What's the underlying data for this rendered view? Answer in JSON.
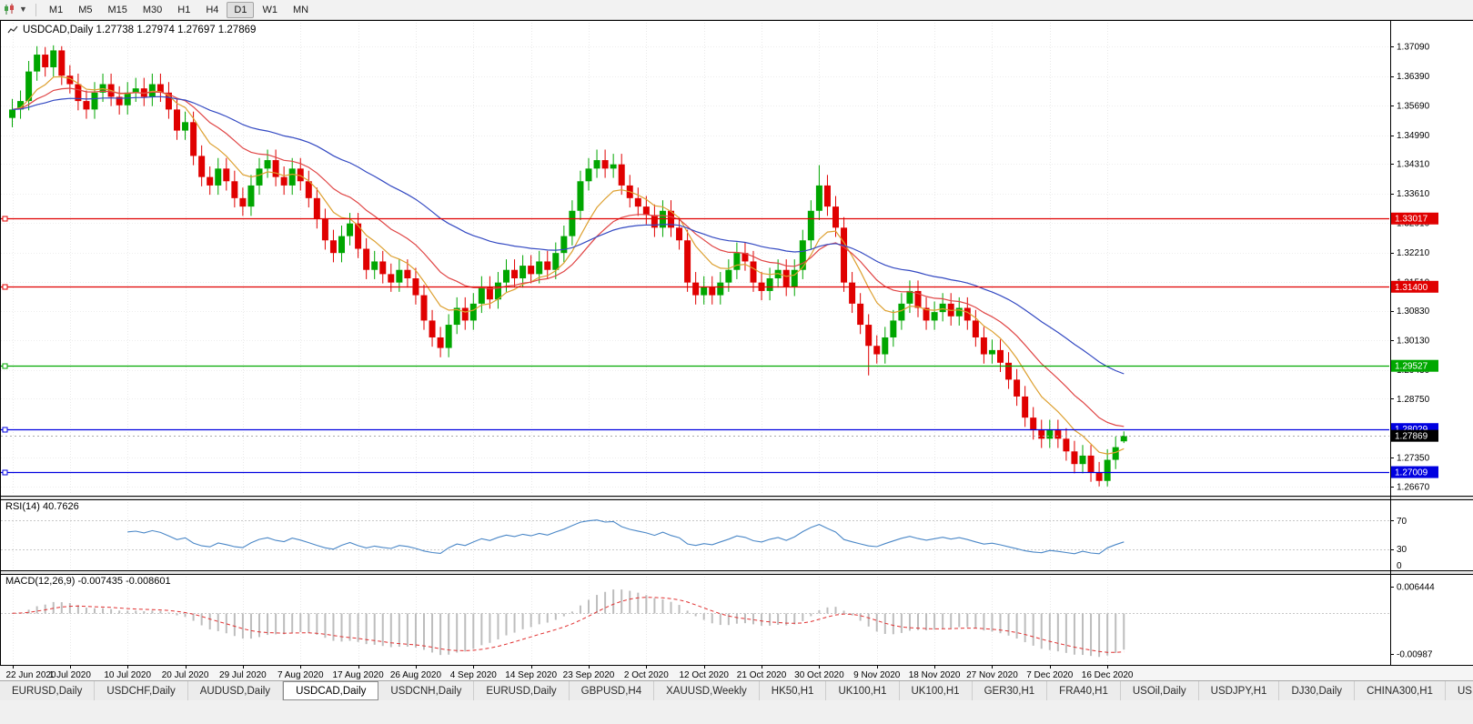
{
  "toolbar": {
    "timeframes": [
      "M1",
      "M5",
      "M15",
      "M30",
      "H1",
      "H4",
      "D1",
      "W1",
      "MN"
    ],
    "active_timeframe": "D1"
  },
  "chart": {
    "title_text": "USDCAD,Daily 1.27738 1.27974 1.27697 1.27869",
    "price_axis_labels": [
      {
        "text": "1.37090",
        "value": 1.3709
      },
      {
        "text": "1.36390",
        "value": 1.3639
      },
      {
        "text": "1.35690",
        "value": 1.3569
      },
      {
        "text": "1.34990",
        "value": 1.3499
      },
      {
        "text": "1.34310",
        "value": 1.3431
      },
      {
        "text": "1.33610",
        "value": 1.3361
      },
      {
        "text": "1.32910",
        "value": 1.3291
      },
      {
        "text": "1.32210",
        "value": 1.3221
      },
      {
        "text": "1.31510",
        "value": 1.3151
      },
      {
        "text": "1.30830",
        "value": 1.3083
      },
      {
        "text": "1.30130",
        "value": 1.3013
      },
      {
        "text": "1.29430",
        "value": 1.2943
      },
      {
        "text": "1.28750",
        "value": 1.2875
      },
      {
        "text": "1.27350",
        "value": 1.2735
      },
      {
        "text": "1.26670",
        "value": 1.2667
      }
    ],
    "hlines": [
      {
        "label": "1.33017",
        "value": 1.33017,
        "color": "#E00000"
      },
      {
        "label": "1.31400",
        "value": 1.314,
        "color": "#E00000"
      },
      {
        "label": "1.29527",
        "value": 1.29527,
        "color": "#00A800"
      },
      {
        "label": "1.28029",
        "value": 1.28029,
        "color": "#0000E0"
      },
      {
        "label": "1.27009",
        "value": 1.27009,
        "color": "#0000E0"
      }
    ],
    "current_price": {
      "label": "1.27869",
      "value": 1.27869
    },
    "date_labels": [
      "22 Jun 2020",
      "1 Jul 2020",
      "10 Jul 2020",
      "20 Jul 2020",
      "29 Jul 2020",
      "7 Aug 2020",
      "17 Aug 2020",
      "26 Aug 2020",
      "4 Sep 2020",
      "14 Sep 2020",
      "23 Sep 2020",
      "2 Oct 2020",
      "12 Oct 2020",
      "21 Oct 2020",
      "30 Oct 2020",
      "9 Nov 2020",
      "18 Nov 2020",
      "27 Nov 2020",
      "7 Dec 2020",
      "16 Dec 2020"
    ]
  },
  "rsi_panel": {
    "label": "RSI(14) 40.7626",
    "value": 40.7626,
    "levels": [
      {
        "text": "70",
        "value": 70
      },
      {
        "text": "30",
        "value": 30
      },
      {
        "text": "0",
        "value": 0
      }
    ]
  },
  "macd_panel": {
    "label": "MACD(12,26,9) -0.007435 -0.008601",
    "macd_value": -0.007435,
    "signal_value": -0.008601,
    "scale_labels": [
      {
        "text": "0.006444",
        "value": 0.006444
      },
      {
        "text": "-0.00987",
        "value": -0.00987
      }
    ]
  },
  "chart_data": {
    "type": "candlestick",
    "symbol": "USDCAD",
    "timeframe": "Daily",
    "current_ohlc": {
      "open": 1.27738,
      "high": 1.27974,
      "low": 1.27697,
      "close": 1.27869
    },
    "y_range": [
      1.2645,
      1.3772
    ],
    "x_tick_step": 7,
    "candles": [
      [
        1.354,
        1.3585,
        1.3518,
        1.356
      ],
      [
        1.356,
        1.3605,
        1.3538,
        1.358
      ],
      [
        1.358,
        1.3675,
        1.3558,
        1.365
      ],
      [
        1.365,
        1.371,
        1.3628,
        1.369
      ],
      [
        1.369,
        1.3708,
        1.3638,
        1.366
      ],
      [
        1.366,
        1.3712,
        1.3638,
        1.37
      ],
      [
        1.37,
        1.371,
        1.3618,
        1.364
      ],
      [
        1.364,
        1.3665,
        1.3598,
        1.362
      ],
      [
        1.362,
        1.3645,
        1.3558,
        1.358
      ],
      [
        1.358,
        1.3605,
        1.3538,
        1.356
      ],
      [
        1.356,
        1.3625,
        1.3538,
        1.36
      ],
      [
        1.36,
        1.3645,
        1.3578,
        1.362
      ],
      [
        1.362,
        1.3645,
        1.3568,
        1.359
      ],
      [
        1.359,
        1.3615,
        1.3548,
        1.357
      ],
      [
        1.357,
        1.3625,
        1.3548,
        1.36
      ],
      [
        1.36,
        1.3635,
        1.3578,
        1.361
      ],
      [
        1.361,
        1.3635,
        1.3568,
        1.359
      ],
      [
        1.359,
        1.3645,
        1.3568,
        1.362
      ],
      [
        1.362,
        1.3645,
        1.3578,
        1.36
      ],
      [
        1.36,
        1.3625,
        1.3538,
        1.356
      ],
      [
        1.356,
        1.3585,
        1.3488,
        1.351
      ],
      [
        1.351,
        1.3555,
        1.3488,
        1.353
      ],
      [
        1.353,
        1.3555,
        1.3428,
        1.345
      ],
      [
        1.345,
        1.3475,
        1.3378,
        1.34
      ],
      [
        1.34,
        1.3425,
        1.3358,
        1.338
      ],
      [
        1.338,
        1.3445,
        1.3358,
        1.342
      ],
      [
        1.342,
        1.3445,
        1.3368,
        1.339
      ],
      [
        1.339,
        1.3415,
        1.3328,
        1.335
      ],
      [
        1.335,
        1.3375,
        1.3308,
        1.333
      ],
      [
        1.333,
        1.3405,
        1.3308,
        1.338
      ],
      [
        1.338,
        1.3445,
        1.3358,
        1.342
      ],
      [
        1.342,
        1.3465,
        1.3398,
        1.344
      ],
      [
        1.344,
        1.3465,
        1.3378,
        1.34
      ],
      [
        1.34,
        1.3425,
        1.3358,
        1.338
      ],
      [
        1.338,
        1.3445,
        1.3358,
        1.342
      ],
      [
        1.342,
        1.3445,
        1.3368,
        1.339
      ],
      [
        1.339,
        1.3415,
        1.3328,
        1.335
      ],
      [
        1.335,
        1.3375,
        1.3278,
        1.33
      ],
      [
        1.33,
        1.3325,
        1.3228,
        1.325
      ],
      [
        1.325,
        1.3275,
        1.3198,
        1.322
      ],
      [
        1.322,
        1.3285,
        1.3198,
        1.326
      ],
      [
        1.326,
        1.3315,
        1.3238,
        1.329
      ],
      [
        1.329,
        1.3315,
        1.3208,
        1.323
      ],
      [
        1.323,
        1.3255,
        1.3158,
        1.318
      ],
      [
        1.318,
        1.3225,
        1.3158,
        1.32
      ],
      [
        1.32,
        1.3225,
        1.3148,
        1.317
      ],
      [
        1.317,
        1.3195,
        1.3128,
        1.315
      ],
      [
        1.315,
        1.3205,
        1.3128,
        1.318
      ],
      [
        1.318,
        1.3205,
        1.3138,
        1.316
      ],
      [
        1.316,
        1.3185,
        1.3098,
        1.312
      ],
      [
        1.312,
        1.3145,
        1.3038,
        1.306
      ],
      [
        1.306,
        1.3085,
        1.2998,
        1.302
      ],
      [
        1.302,
        1.3045,
        1.2973,
        1.2995
      ],
      [
        1.2995,
        1.3075,
        1.2973,
        1.305
      ],
      [
        1.305,
        1.3115,
        1.3028,
        1.309
      ],
      [
        1.309,
        1.3115,
        1.3038,
        1.306
      ],
      [
        1.306,
        1.3125,
        1.3038,
        1.31
      ],
      [
        1.31,
        1.3165,
        1.3078,
        1.314
      ],
      [
        1.314,
        1.3165,
        1.3088,
        1.311
      ],
      [
        1.311,
        1.3175,
        1.3088,
        1.315
      ],
      [
        1.315,
        1.3205,
        1.3128,
        1.318
      ],
      [
        1.318,
        1.3205,
        1.3138,
        1.316
      ],
      [
        1.316,
        1.3215,
        1.3138,
        1.319
      ],
      [
        1.319,
        1.3215,
        1.3148,
        1.317
      ],
      [
        1.317,
        1.3225,
        1.3148,
        1.32
      ],
      [
        1.32,
        1.3225,
        1.3158,
        1.318
      ],
      [
        1.318,
        1.3245,
        1.3158,
        1.322
      ],
      [
        1.322,
        1.3285,
        1.3198,
        1.326
      ],
      [
        1.326,
        1.3345,
        1.3238,
        1.332
      ],
      [
        1.332,
        1.3415,
        1.3298,
        1.339
      ],
      [
        1.339,
        1.3445,
        1.3368,
        1.342
      ],
      [
        1.342,
        1.3465,
        1.3398,
        1.344
      ],
      [
        1.344,
        1.3465,
        1.3398,
        1.342
      ],
      [
        1.342,
        1.3455,
        1.3398,
        1.343
      ],
      [
        1.343,
        1.3455,
        1.3358,
        1.338
      ],
      [
        1.338,
        1.3405,
        1.3328,
        1.335
      ],
      [
        1.335,
        1.3375,
        1.3308,
        1.333
      ],
      [
        1.333,
        1.3355,
        1.3288,
        1.331
      ],
      [
        1.331,
        1.3335,
        1.3258,
        1.328
      ],
      [
        1.328,
        1.3345,
        1.3258,
        1.332
      ],
      [
        1.332,
        1.3345,
        1.3258,
        1.328
      ],
      [
        1.328,
        1.3305,
        1.3228,
        1.325
      ],
      [
        1.325,
        1.3275,
        1.3128,
        1.315
      ],
      [
        1.315,
        1.3175,
        1.3098,
        1.312
      ],
      [
        1.312,
        1.3165,
        1.3098,
        1.314
      ],
      [
        1.314,
        1.3165,
        1.3098,
        1.312
      ],
      [
        1.312,
        1.3175,
        1.3098,
        1.315
      ],
      [
        1.315,
        1.3205,
        1.3128,
        1.318
      ],
      [
        1.318,
        1.3245,
        1.3158,
        1.322
      ],
      [
        1.322,
        1.3245,
        1.3178,
        1.32
      ],
      [
        1.32,
        1.3225,
        1.3128,
        1.315
      ],
      [
        1.315,
        1.3175,
        1.3108,
        1.313
      ],
      [
        1.313,
        1.3185,
        1.3108,
        1.316
      ],
      [
        1.316,
        1.3205,
        1.3138,
        1.318
      ],
      [
        1.318,
        1.3205,
        1.3118,
        1.314
      ],
      [
        1.314,
        1.3205,
        1.3118,
        1.318
      ],
      [
        1.318,
        1.3275,
        1.3158,
        1.325
      ],
      [
        1.325,
        1.3345,
        1.3228,
        1.332
      ],
      [
        1.332,
        1.3428,
        1.3298,
        1.338
      ],
      [
        1.338,
        1.3405,
        1.3308,
        1.333
      ],
      [
        1.333,
        1.3355,
        1.3258,
        1.328
      ],
      [
        1.328,
        1.3305,
        1.3128,
        1.315
      ],
      [
        1.315,
        1.3175,
        1.3078,
        1.31
      ],
      [
        1.31,
        1.3125,
        1.3028,
        1.305
      ],
      [
        1.305,
        1.3075,
        1.293,
        1.3
      ],
      [
        1.3,
        1.3025,
        1.2958,
        1.298
      ],
      [
        1.298,
        1.3045,
        1.2958,
        1.302
      ],
      [
        1.302,
        1.3085,
        1.2998,
        1.306
      ],
      [
        1.306,
        1.3125,
        1.3038,
        1.31
      ],
      [
        1.31,
        1.3155,
        1.3078,
        1.313
      ],
      [
        1.313,
        1.3155,
        1.3068,
        1.309
      ],
      [
        1.309,
        1.3115,
        1.3038,
        1.306
      ],
      [
        1.306,
        1.3105,
        1.3038,
        1.308
      ],
      [
        1.308,
        1.3125,
        1.3058,
        1.31
      ],
      [
        1.31,
        1.3125,
        1.3048,
        1.307
      ],
      [
        1.307,
        1.3115,
        1.3048,
        1.309
      ],
      [
        1.309,
        1.3115,
        1.3038,
        1.306
      ],
      [
        1.306,
        1.3085,
        1.2998,
        1.302
      ],
      [
        1.302,
        1.3045,
        1.2958,
        1.298
      ],
      [
        1.298,
        1.3015,
        1.2958,
        1.299
      ],
      [
        1.299,
        1.3015,
        1.2938,
        1.296
      ],
      [
        1.296,
        1.2985,
        1.2898,
        1.292
      ],
      [
        1.292,
        1.2945,
        1.2858,
        1.288
      ],
      [
        1.288,
        1.2905,
        1.2808,
        1.283
      ],
      [
        1.283,
        1.2855,
        1.2778,
        1.28
      ],
      [
        1.28,
        1.2825,
        1.2758,
        1.278
      ],
      [
        1.278,
        1.2825,
        1.2758,
        1.28
      ],
      [
        1.28,
        1.2825,
        1.2758,
        1.278
      ],
      [
        1.278,
        1.2805,
        1.2728,
        1.275
      ],
      [
        1.275,
        1.2775,
        1.2698,
        1.272
      ],
      [
        1.272,
        1.2765,
        1.2698,
        1.274
      ],
      [
        1.274,
        1.2765,
        1.2678,
        1.27
      ],
      [
        1.27,
        1.2725,
        1.2667,
        1.268
      ],
      [
        1.268,
        1.2755,
        1.2667,
        1.273
      ],
      [
        1.273,
        1.2785,
        1.2708,
        1.276
      ],
      [
        1.27738,
        1.27974,
        1.27697,
        1.27869
      ]
    ],
    "overlays": {
      "moving_averages": [
        {
          "name": "ma-fast-line",
          "method": "ema",
          "period": 8,
          "color": "#DDA030"
        },
        {
          "name": "ma-medium-line",
          "method": "ema",
          "period": 17,
          "color": "#E04545"
        },
        {
          "name": "ma-slow-line",
          "method": "ema",
          "period": 40,
          "color": "#3349C2"
        }
      ]
    },
    "indicators": [
      {
        "name": "RSI",
        "period": 14,
        "color": "#4A87C7",
        "range": [
          0,
          100
        ],
        "levels": [
          70,
          30
        ]
      },
      {
        "name": "MACD",
        "fast": 12,
        "slow": 26,
        "signal": 9,
        "hist_color": "#BDBDBD",
        "signal_color": "#E03030",
        "range": [
          -0.0125,
          0.0095
        ]
      }
    ],
    "colors": {
      "bull": "#00A600",
      "bear": "#E00000",
      "grid": "#E9E9E9",
      "current_price_line": "#AAAAAA"
    }
  },
  "tabs": {
    "active_index": 3,
    "items": [
      "EURUSD,Daily",
      "USDCHF,Daily",
      "AUDUSD,Daily",
      "USDCAD,Daily",
      "USDCNH,Daily",
      "EURUSD,Daily",
      "GBPUSD,H4",
      "XAUUSD,Weekly",
      "HK50,H1",
      "UK100,H1",
      "UK100,H1",
      "GER30,H1",
      "FRA40,H1",
      "USOil,Daily",
      "USDJPY,H1",
      "DJ30,Daily",
      "CHINA300,H1",
      "US"
    ]
  }
}
